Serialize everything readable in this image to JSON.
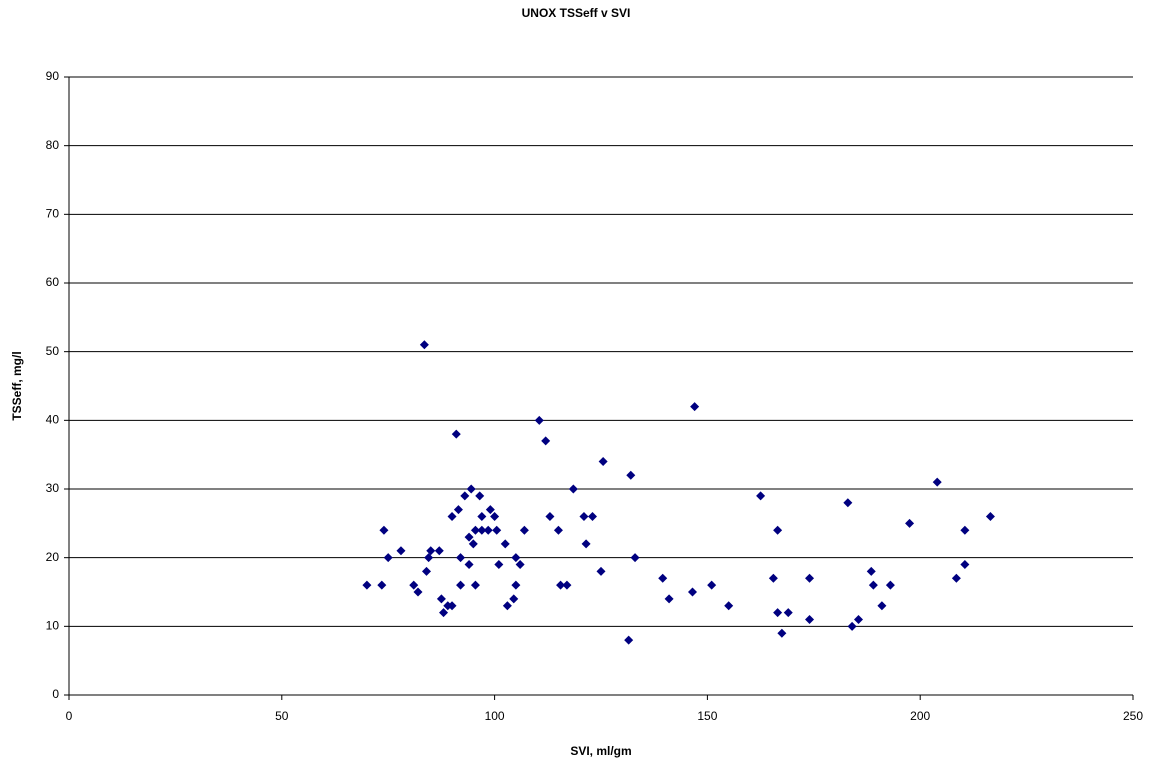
{
  "chart_data": {
    "type": "scatter",
    "title": "UNOX TSSeff v SVI",
    "x_label": "SVI, ml/gm",
    "y_label": "TSSeff, mg/l",
    "xlim": [
      0,
      250
    ],
    "xticks": [
      0,
      50,
      100,
      150,
      200,
      250
    ],
    "ylim": [
      0,
      90
    ],
    "yticks": [
      0,
      10,
      20,
      30,
      40,
      50,
      60,
      70,
      80,
      90
    ],
    "grid": true,
    "series": [
      {
        "color": "#000080",
        "x": [
          70,
          73.5,
          74,
          75,
          78,
          81,
          82,
          83.5,
          84,
          84.5,
          85,
          87,
          87.5,
          88,
          89,
          90,
          90,
          91,
          91.5,
          92,
          92,
          93,
          94,
          94,
          94.5,
          95,
          95.5,
          95.5,
          96.5,
          97,
          97,
          98.5,
          99,
          100,
          100.5,
          101,
          102.5,
          103,
          104.5,
          105,
          105,
          106,
          107,
          110.5,
          112,
          113,
          115,
          115.5,
          117,
          118.5,
          121,
          121.5,
          123,
          125,
          125.5,
          131.5,
          132,
          133,
          139.5,
          141,
          146.5,
          147,
          151,
          155,
          162.5,
          165.5,
          166.5,
          166.5,
          167.5,
          169,
          174,
          174,
          183,
          184,
          185.5,
          188.5,
          189,
          191,
          193,
          197.5,
          204,
          208.5,
          210.5,
          210.5,
          216.5
        ],
        "values": [
          16,
          16,
          24,
          20,
          21,
          16,
          15,
          51,
          18,
          20,
          21,
          21,
          14,
          12,
          13,
          13,
          26,
          38,
          27,
          20,
          16,
          29,
          23,
          19,
          30,
          22,
          24,
          16,
          29,
          24,
          26,
          24,
          27,
          26,
          24,
          19,
          22,
          13,
          14,
          16,
          20,
          19,
          24,
          40,
          37,
          26,
          24,
          16,
          16,
          30,
          26,
          22,
          26,
          18,
          34,
          8,
          32,
          20,
          17,
          14,
          15,
          42,
          16,
          13,
          29,
          17,
          24,
          12,
          9,
          12,
          17,
          11,
          28,
          10,
          11,
          18,
          16,
          13,
          16,
          25,
          31,
          17,
          19,
          24,
          26
        ]
      }
    ]
  }
}
